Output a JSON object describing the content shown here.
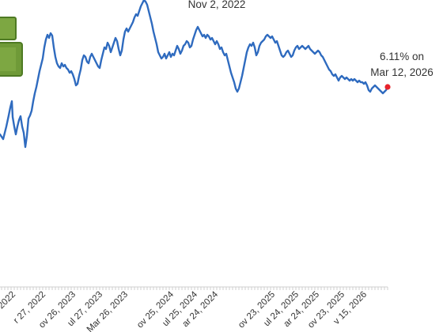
{
  "chart_data": {
    "type": "line",
    "series_color": "#2f6bbf",
    "marker_color": "#e8232b",
    "x_ticks": [
      "r 27, 2022",
      "ov 26, 2023",
      "ul 27, 2023",
      "Mar 26, 2023",
      "ov 25, 2024",
      "ul 25, 2024",
      "ar 24, 2024",
      "ov 23, 2025",
      "ul 24, 2025",
      "ar 24, 2025",
      "ov 23, 2025",
      "v 15, 2026"
    ],
    "partial_tick": "2022",
    "annotations": {
      "peak": "Nov 2, 2022",
      "last_value": "6.11% on",
      "last_date": "Mar 12, 2026"
    },
    "points": [
      [
        0,
        170
      ],
      [
        4,
        176
      ],
      [
        8,
        160
      ],
      [
        11,
        146
      ],
      [
        13,
        136
      ],
      [
        15,
        128
      ],
      [
        16,
        148
      ],
      [
        18,
        160
      ],
      [
        20,
        170
      ],
      [
        22,
        160
      ],
      [
        24,
        152
      ],
      [
        26,
        147
      ],
      [
        28,
        160
      ],
      [
        30,
        168
      ],
      [
        32,
        186
      ],
      [
        34,
        172
      ],
      [
        36,
        150
      ],
      [
        38,
        146
      ],
      [
        40,
        140
      ],
      [
        42,
        128
      ],
      [
        44,
        118
      ],
      [
        46,
        110
      ],
      [
        48,
        100
      ],
      [
        50,
        90
      ],
      [
        52,
        82
      ],
      [
        54,
        74
      ],
      [
        56,
        60
      ],
      [
        58,
        50
      ],
      [
        60,
        44
      ],
      [
        62,
        48
      ],
      [
        64,
        42
      ],
      [
        66,
        45
      ],
      [
        68,
        60
      ],
      [
        70,
        72
      ],
      [
        72,
        80
      ],
      [
        74,
        84
      ],
      [
        76,
        86
      ],
      [
        78,
        80
      ],
      [
        80,
        84
      ],
      [
        82,
        82
      ],
      [
        84,
        86
      ],
      [
        86,
        88
      ],
      [
        88,
        92
      ],
      [
        90,
        90
      ],
      [
        92,
        94
      ],
      [
        94,
        100
      ],
      [
        96,
        108
      ],
      [
        98,
        106
      ],
      [
        100,
        96
      ],
      [
        102,
        88
      ],
      [
        104,
        76
      ],
      [
        106,
        70
      ],
      [
        108,
        72
      ],
      [
        110,
        78
      ],
      [
        112,
        80
      ],
      [
        114,
        72
      ],
      [
        116,
        68
      ],
      [
        118,
        72
      ],
      [
        120,
        76
      ],
      [
        122,
        80
      ],
      [
        124,
        84
      ],
      [
        126,
        86
      ],
      [
        128,
        76
      ],
      [
        130,
        68
      ],
      [
        132,
        60
      ],
      [
        134,
        62
      ],
      [
        136,
        54
      ],
      [
        138,
        58
      ],
      [
        140,
        66
      ],
      [
        142,
        60
      ],
      [
        144,
        54
      ],
      [
        146,
        48
      ],
      [
        148,
        52
      ],
      [
        150,
        62
      ],
      [
        152,
        70
      ],
      [
        154,
        64
      ],
      [
        156,
        50
      ],
      [
        158,
        40
      ],
      [
        160,
        36
      ],
      [
        162,
        40
      ],
      [
        164,
        36
      ],
      [
        166,
        32
      ],
      [
        168,
        28
      ],
      [
        170,
        22
      ],
      [
        172,
        18
      ],
      [
        174,
        20
      ],
      [
        176,
        14
      ],
      [
        178,
        8
      ],
      [
        180,
        4
      ],
      [
        182,
        0
      ],
      [
        184,
        2
      ],
      [
        186,
        6
      ],
      [
        188,
        14
      ],
      [
        190,
        22
      ],
      [
        192,
        30
      ],
      [
        194,
        40
      ],
      [
        196,
        48
      ],
      [
        198,
        56
      ],
      [
        200,
        66
      ],
      [
        202,
        70
      ],
      [
        204,
        74
      ],
      [
        206,
        72
      ],
      [
        208,
        68
      ],
      [
        210,
        74
      ],
      [
        212,
        70
      ],
      [
        214,
        66
      ],
      [
        216,
        72
      ],
      [
        218,
        68
      ],
      [
        220,
        70
      ],
      [
        222,
        64
      ],
      [
        224,
        58
      ],
      [
        226,
        62
      ],
      [
        228,
        68
      ],
      [
        230,
        64
      ],
      [
        232,
        58
      ],
      [
        234,
        56
      ],
      [
        236,
        52
      ],
      [
        238,
        54
      ],
      [
        240,
        60
      ],
      [
        242,
        58
      ],
      [
        244,
        50
      ],
      [
        246,
        44
      ],
      [
        248,
        38
      ],
      [
        250,
        34
      ],
      [
        252,
        38
      ],
      [
        254,
        42
      ],
      [
        256,
        46
      ],
      [
        258,
        44
      ],
      [
        260,
        48
      ],
      [
        262,
        44
      ],
      [
        264,
        46
      ],
      [
        266,
        50
      ],
      [
        268,
        48
      ],
      [
        270,
        52
      ],
      [
        272,
        56
      ],
      [
        274,
        52
      ],
      [
        276,
        56
      ],
      [
        278,
        62
      ],
      [
        280,
        60
      ],
      [
        282,
        66
      ],
      [
        284,
        70
      ],
      [
        286,
        68
      ],
      [
        288,
        76
      ],
      [
        290,
        84
      ],
      [
        292,
        92
      ],
      [
        294,
        98
      ],
      [
        296,
        104
      ],
      [
        298,
        112
      ],
      [
        300,
        116
      ],
      [
        302,
        112
      ],
      [
        304,
        104
      ],
      [
        306,
        96
      ],
      [
        308,
        86
      ],
      [
        310,
        76
      ],
      [
        312,
        66
      ],
      [
        314,
        60
      ],
      [
        316,
        56
      ],
      [
        318,
        58
      ],
      [
        320,
        54
      ],
      [
        322,
        60
      ],
      [
        324,
        70
      ],
      [
        326,
        66
      ],
      [
        328,
        58
      ],
      [
        330,
        54
      ],
      [
        332,
        52
      ],
      [
        334,
        50
      ],
      [
        336,
        46
      ],
      [
        338,
        44
      ],
      [
        340,
        46
      ],
      [
        342,
        48
      ],
      [
        344,
        46
      ],
      [
        346,
        50
      ],
      [
        348,
        54
      ],
      [
        350,
        52
      ],
      [
        352,
        58
      ],
      [
        354,
        64
      ],
      [
        356,
        70
      ],
      [
        358,
        72
      ],
      [
        360,
        70
      ],
      [
        362,
        66
      ],
      [
        364,
        64
      ],
      [
        366,
        68
      ],
      [
        368,
        72
      ],
      [
        370,
        70
      ],
      [
        372,
        64
      ],
      [
        374,
        60
      ],
      [
        376,
        58
      ],
      [
        378,
        62
      ],
      [
        380,
        60
      ],
      [
        382,
        58
      ],
      [
        384,
        60
      ],
      [
        386,
        62
      ],
      [
        388,
        60
      ],
      [
        390,
        58
      ],
      [
        392,
        62
      ],
      [
        394,
        64
      ],
      [
        396,
        66
      ],
      [
        398,
        68
      ],
      [
        400,
        66
      ],
      [
        402,
        64
      ],
      [
        404,
        66
      ],
      [
        406,
        70
      ],
      [
        408,
        72
      ],
      [
        410,
        76
      ],
      [
        412,
        80
      ],
      [
        414,
        84
      ],
      [
        416,
        88
      ],
      [
        418,
        90
      ],
      [
        420,
        94
      ],
      [
        422,
        96
      ],
      [
        424,
        94
      ],
      [
        426,
        98
      ],
      [
        428,
        102
      ],
      [
        430,
        98
      ],
      [
        432,
        96
      ],
      [
        434,
        98
      ],
      [
        436,
        100
      ],
      [
        438,
        98
      ],
      [
        440,
        100
      ],
      [
        442,
        102
      ],
      [
        444,
        100
      ],
      [
        446,
        102
      ],
      [
        448,
        100
      ],
      [
        450,
        102
      ],
      [
        452,
        104
      ],
      [
        454,
        102
      ],
      [
        456,
        104
      ],
      [
        458,
        104
      ],
      [
        460,
        106
      ],
      [
        462,
        104
      ],
      [
        464,
        108
      ],
      [
        466,
        114
      ],
      [
        468,
        116
      ],
      [
        470,
        112
      ],
      [
        472,
        110
      ],
      [
        474,
        108
      ],
      [
        476,
        110
      ],
      [
        478,
        112
      ],
      [
        480,
        114
      ],
      [
        482,
        116
      ],
      [
        484,
        118
      ],
      [
        486,
        116
      ],
      [
        488,
        114
      ],
      [
        490,
        110
      ]
    ]
  }
}
